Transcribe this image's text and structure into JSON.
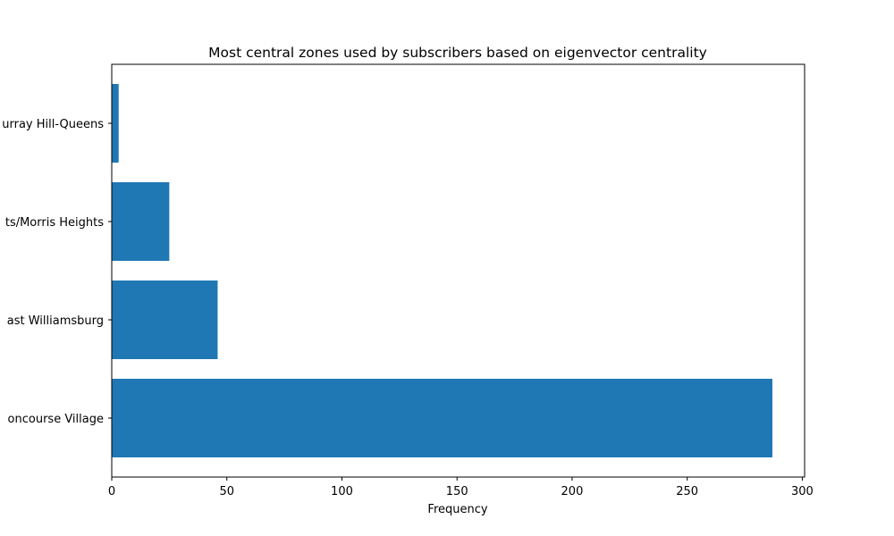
{
  "chart_data": {
    "type": "bar",
    "orientation": "horizontal",
    "title": "Most central zones used by subscribers based on eigenvector centrality",
    "xlabel": "Frequency",
    "ylabel": "",
    "categories": [
      "Concourse Village",
      "East Williamsburg",
      "Mount Hope/Morris Heights",
      "Murray Hill-Queens"
    ],
    "category_labels_visible": [
      "oncourse Village",
      "ast Williamsburg",
      "ts/Morris Heights",
      "urray Hill-Queens"
    ],
    "values": [
      287,
      46,
      25,
      3
    ],
    "xlim": [
      0,
      301
    ],
    "xticks": [
      0,
      50,
      100,
      150,
      200,
      250,
      300
    ],
    "grid": false,
    "colors": {
      "bar": "#1f77b4",
      "axis": "#000000",
      "background": "#ffffff"
    }
  }
}
